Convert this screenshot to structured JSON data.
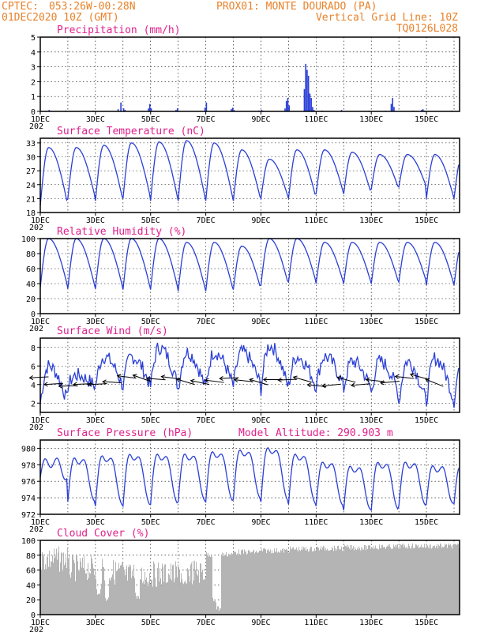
{
  "header": {
    "line1_left": "CPTEC:",
    "line1_coords": "053:26W-00:28N",
    "line1_station": "PROX01: MONTE DOURADO (PA)",
    "line2_date": "01DEC2020 10Z (GMT)",
    "line2_grid": "Vertical Grid Line: 10Z",
    "line3_model": "TQ0126L028"
  },
  "colors": {
    "header": "#e8822a",
    "title": "#e0208c",
    "series": "#2a3fd6",
    "cloud": "#b4b4b4"
  },
  "x_axis": {
    "labels": [
      "1DEC",
      "3DEC",
      "5DEC",
      "7DEC",
      "9DEC",
      "11DEC",
      "13DEC",
      "15DEC"
    ],
    "label_days": [
      0,
      2,
      4,
      6,
      8,
      10,
      12,
      14
    ],
    "range_days": [
      0,
      15.2
    ],
    "year_fragment": "202"
  },
  "chart_data": [
    {
      "type": "bar",
      "title": "Precipitation (mm/h)",
      "ylim": [
        0,
        5
      ],
      "yticks": [
        "0",
        "1",
        "2",
        "3",
        "4",
        "5"
      ],
      "x": [
        0.3,
        0.9,
        1.9,
        2.8,
        2.9,
        3.0,
        3.05,
        3.9,
        3.95,
        4.0,
        4.9,
        4.95,
        5.0,
        5.95,
        6.0,
        6.9,
        6.95,
        7.0,
        7.9,
        8.0,
        8.05,
        8.85,
        8.9,
        8.95,
        9.0,
        9.55,
        9.6,
        9.65,
        9.7,
        9.75,
        9.8,
        9.85,
        9.9,
        10.2,
        10.9,
        11.9,
        12.5,
        12.7,
        12.75,
        12.8,
        13.5,
        13.8,
        13.85,
        13.9,
        14.9
      ],
      "values": [
        0.1,
        0.05,
        0.05,
        0.15,
        0.6,
        0.2,
        0.1,
        0.2,
        0.5,
        0.2,
        0.1,
        0.2,
        0.05,
        0.25,
        0.6,
        0.15,
        0.25,
        0.1,
        0.05,
        0.1,
        0.05,
        0.2,
        0.7,
        0.9,
        0.4,
        1.5,
        3.2,
        2.8,
        2.4,
        1.2,
        0.9,
        0.3,
        0.1,
        0.05,
        0.1,
        0.05,
        0.05,
        0.5,
        0.9,
        0.3,
        0.05,
        0.1,
        0.15,
        0.05,
        0.05
      ]
    },
    {
      "type": "line",
      "title": "Surface Temperature (nC)",
      "ylim": [
        18,
        34
      ],
      "yticks": [
        "18",
        "21",
        "24",
        "27",
        "30",
        "33"
      ],
      "daily_max": [
        32.0,
        32.0,
        32.5,
        33.0,
        33.2,
        33.5,
        33.0,
        31.5,
        29.5,
        31.5,
        31.5,
        31.0,
        30.5,
        30.5,
        30.5
      ],
      "daily_min": [
        19.5,
        21.0,
        20.5,
        21.0,
        20.5,
        20.5,
        20.5,
        20.5,
        21.0,
        21.0,
        22.0,
        22.0,
        23.0,
        23.5,
        21.0
      ],
      "series": [
        {
          "values_note": ""
        }
      ]
    },
    {
      "type": "line",
      "title": "Relative Humidity (%)",
      "ylim": [
        0,
        100
      ],
      "yticks": [
        "0",
        "20",
        "40",
        "60",
        "80",
        "100"
      ],
      "daily_max": [
        100,
        100,
        100,
        100,
        100,
        95,
        95,
        90,
        100,
        100,
        95,
        95,
        95,
        95,
        95
      ],
      "daily_min": [
        35,
        33,
        33,
        32,
        32,
        30,
        30,
        32,
        38,
        42,
        40,
        40,
        40,
        42,
        38
      ]
    },
    {
      "type": "line",
      "title": "Surface Wind (m/s)",
      "ylim": [
        1,
        9
      ],
      "yticks": [
        "2",
        "4",
        "6",
        "8"
      ],
      "daily_max": [
        6.0,
        5.0,
        7.0,
        7.0,
        8.0,
        7.5,
        7.5,
        7.5,
        8.2,
        7.0,
        7.0,
        6.5,
        6.5,
        6.5,
        6.8
      ],
      "daily_min": [
        2.0,
        3.8,
        3.8,
        3.8,
        3.8,
        3.5,
        3.8,
        3.8,
        3.5,
        3.8,
        3.8,
        3.5,
        3.0,
        2.0,
        2.2
      ]
    },
    {
      "type": "line",
      "title": "Surface Pressure (hPa)",
      "annotation": "Model Altitude: 290.903 m",
      "ylim": [
        972,
        981
      ],
      "yticks": [
        "972",
        "974",
        "976",
        "978",
        "980"
      ],
      "daily_max": [
        978.5,
        979.0,
        979.3,
        979.5,
        979.5,
        979.5,
        979.8,
        980.0,
        980.3,
        979.5,
        978.5,
        978.0,
        978.5,
        978.5,
        978.0
      ],
      "daily_min": [
        976.5,
        973.5,
        973.0,
        973.0,
        973.2,
        973.5,
        973.5,
        973.8,
        973.5,
        973.2,
        973.0,
        972.5,
        972.5,
        973.0,
        973.3
      ]
    },
    {
      "type": "area",
      "title": "Cloud Cover (%)",
      "ylim": [
        0,
        100
      ],
      "yticks": [
        "0",
        "20",
        "40",
        "60",
        "80",
        "100"
      ],
      "typical": [
        92,
        80,
        75,
        70,
        72,
        75,
        85,
        88,
        90,
        92,
        93,
        94,
        95,
        96,
        96
      ],
      "dips": [
        [
          2.1,
          25
        ],
        [
          2.4,
          15
        ],
        [
          3.5,
          20
        ],
        [
          5.2,
          40
        ],
        [
          6.3,
          15
        ],
        [
          6.45,
          4
        ]
      ]
    }
  ]
}
